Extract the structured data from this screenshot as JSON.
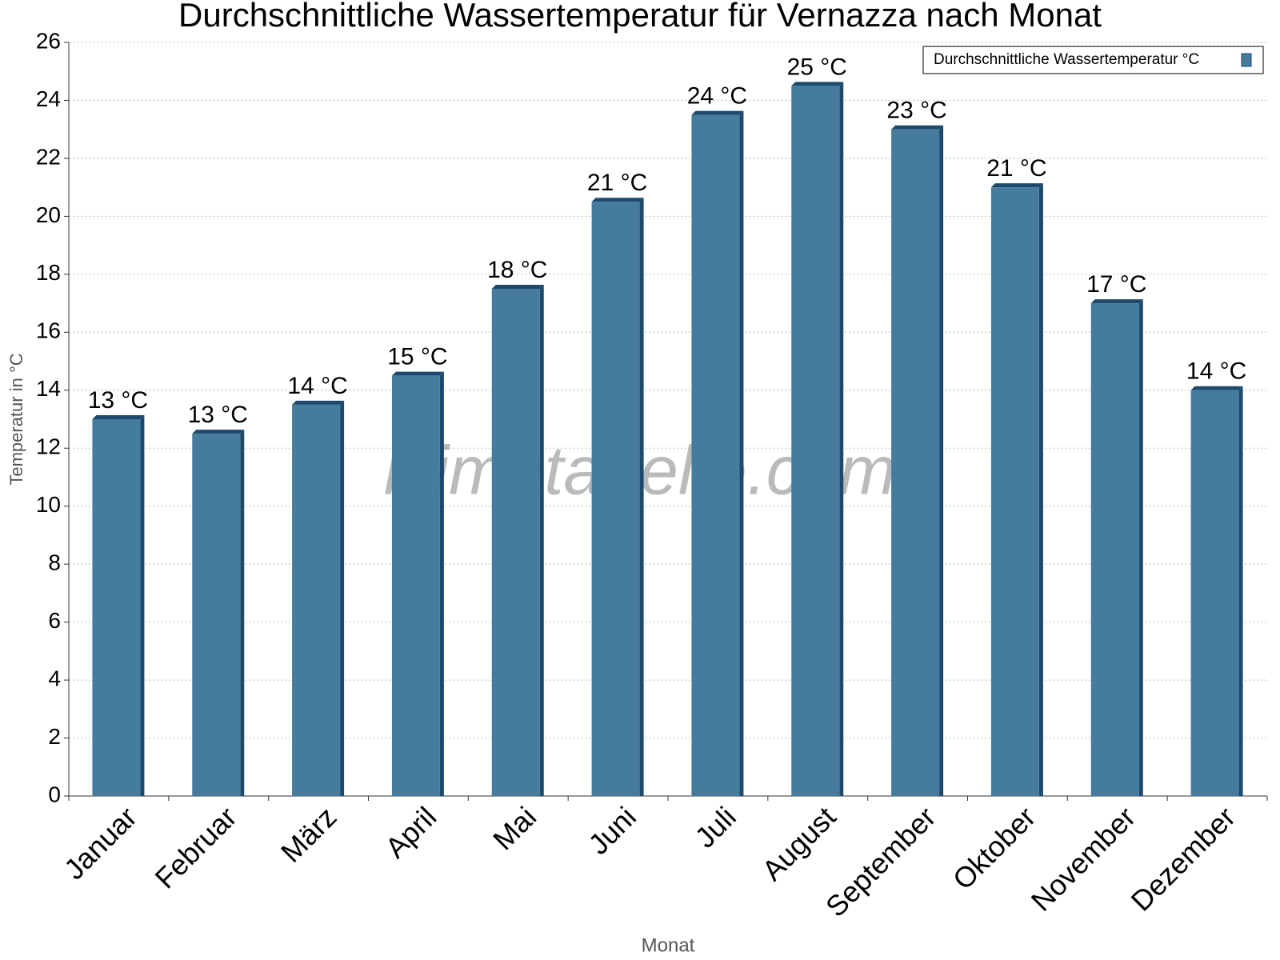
{
  "chart_data": {
    "type": "bar",
    "title": "Durchschnittliche Wassertemperatur für Vernazza nach Monat",
    "x_label": "Monat",
    "y_label": "Temperatur in °C",
    "watermark": "klimatabelle.com",
    "categories": [
      "Januar",
      "Februar",
      "März",
      "April",
      "Mai",
      "Juni",
      "Juli",
      "August",
      "September",
      "Oktober",
      "November",
      "Dezember"
    ],
    "series": [
      {
        "name": "Durchschnittliche Wassertemperatur °C",
        "color": "#457b9d",
        "values": [
          13,
          12.5,
          13.5,
          14.5,
          17.5,
          20.5,
          23.5,
          24.5,
          23,
          21,
          17,
          14
        ],
        "value_labels": [
          "13 °C",
          "13 °C",
          "14 °C",
          "15 °C",
          "18 °C",
          "21 °C",
          "24 °C",
          "25 °C",
          "23 °C",
          "21 °C",
          "17 °C",
          "14 °C"
        ]
      }
    ],
    "ylim": [
      0,
      26
    ],
    "yticks": [
      0,
      2,
      4,
      6,
      8,
      10,
      12,
      14,
      16,
      18,
      20,
      22,
      24,
      26
    ],
    "grid": true,
    "legend": "top-right"
  }
}
